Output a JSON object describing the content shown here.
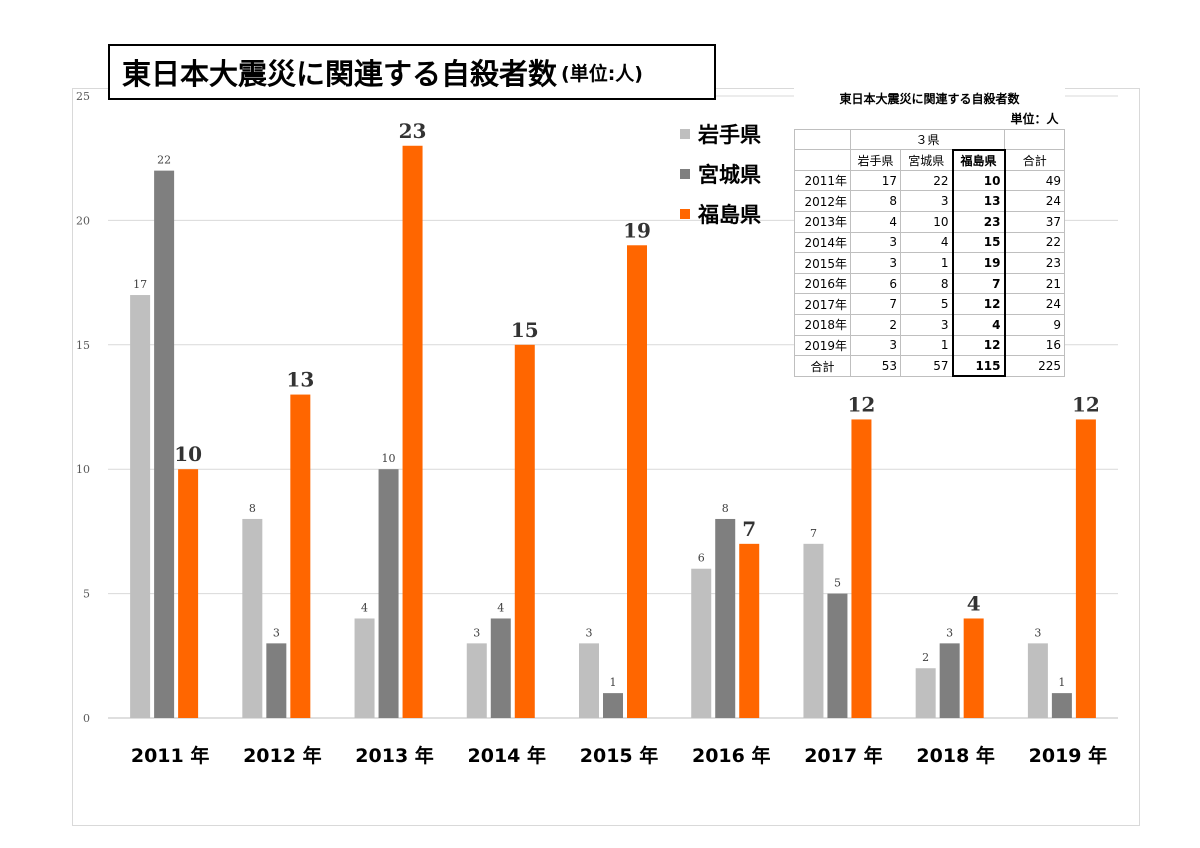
{
  "title": "東日本大震災に関連する自殺者数",
  "unit_label": "(単位:人)",
  "colors": {
    "iwate": "#bfbfbf",
    "miyagi": "#7f7f7f",
    "fukushima": "#ff6600",
    "grid": "#d9d9d9"
  },
  "chart_data": {
    "type": "bar",
    "title": "東日本大震災に関連する自殺者数",
    "unit": "(単位:人)",
    "categories": [
      "2011 年",
      "2012 年",
      "2013 年",
      "2014 年",
      "2015 年",
      "2016 年",
      "2017 年",
      "2018 年",
      "2019 年"
    ],
    "series": [
      {
        "name": "岩手県",
        "values": [
          17,
          8,
          4,
          3,
          3,
          6,
          7,
          2,
          3
        ]
      },
      {
        "name": "宮城県",
        "values": [
          22,
          3,
          10,
          4,
          1,
          8,
          5,
          3,
          1
        ]
      },
      {
        "name": "福島県",
        "values": [
          10,
          13,
          23,
          15,
          19,
          7,
          12,
          4,
          12
        ]
      }
    ],
    "ylim": [
      0,
      25
    ],
    "yticks": [
      0,
      5,
      10,
      15,
      20,
      25
    ],
    "grid": true,
    "legend": "top-right"
  },
  "table": {
    "title": "東日本大震災に関連する自殺者数",
    "unit": "単位：人",
    "group_header": "３県",
    "headers": [
      "岩手県",
      "宮城県",
      "福島県",
      "合計"
    ],
    "rows": [
      {
        "year": "2011年",
        "values": [
          "17",
          "22",
          "10",
          "49"
        ]
      },
      {
        "year": "2012年",
        "values": [
          "8",
          "3",
          "13",
          "24"
        ]
      },
      {
        "year": "2013年",
        "values": [
          "4",
          "10",
          "23",
          "37"
        ]
      },
      {
        "year": "2014年",
        "values": [
          "3",
          "4",
          "15",
          "22"
        ]
      },
      {
        "year": "2015年",
        "values": [
          "3",
          "1",
          "19",
          "23"
        ]
      },
      {
        "year": "2016年",
        "values": [
          "6",
          "8",
          "7",
          "21"
        ]
      },
      {
        "year": "2017年",
        "values": [
          "7",
          "5",
          "12",
          "24"
        ]
      },
      {
        "year": "2018年",
        "values": [
          "2",
          "3",
          "4",
          "9"
        ]
      },
      {
        "year": "2019年",
        "values": [
          "3",
          "1",
          "12",
          "16"
        ]
      }
    ],
    "total": {
      "label": "合計",
      "values": [
        "53",
        "57",
        "115",
        "225"
      ]
    }
  }
}
